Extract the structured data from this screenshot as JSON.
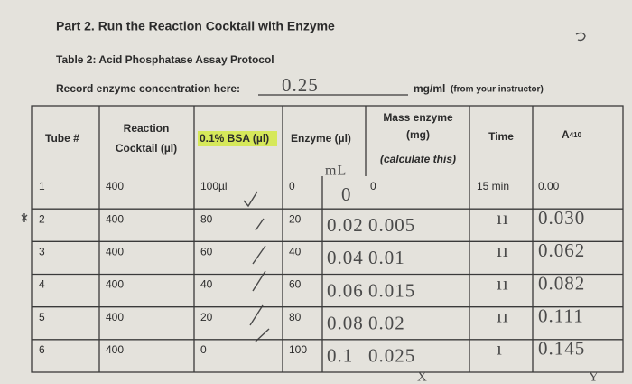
{
  "header": {
    "title": "Part 2. Run the Reaction Cocktail with Enzyme",
    "table_title": "Table 2: Acid Phosphatase Assay Protocol",
    "record_label": "Record enzyme concentration here:",
    "record_value": "0.25",
    "unit": "mg/ml",
    "unit_note": "(from your instructor)"
  },
  "table": {
    "columns": {
      "tube": "Tube #",
      "cocktail": [
        "Reaction",
        "Cocktail (µl)"
      ],
      "bsa": "0.1% BSA (µl)",
      "enzyme": "Enzyme (µl)",
      "mass": [
        "Mass enzyme",
        "(mg)"
      ],
      "mass_note": "(calculate this)",
      "time": "Time",
      "a410": {
        "letter": "A",
        "sub": "410"
      }
    },
    "ml_note": "mL",
    "rows": [
      {
        "tube": "1",
        "cocktail": "400",
        "bsa": "100µl",
        "enzyme": "0",
        "hand_volume": "0",
        "printed_mass": "0",
        "time": "15 min",
        "a410": "0.00"
      },
      {
        "tube": "2",
        "cocktail": "400",
        "bsa": "80",
        "enzyme": "20",
        "hand_volume": "0.02",
        "hand_mass": "0.005",
        "time": "ıı",
        "a410": "0.030"
      },
      {
        "tube": "3",
        "cocktail": "400",
        "bsa": "60",
        "enzyme": "40",
        "hand_volume": "0.04",
        "hand_mass": "0.01",
        "time": "ıı",
        "a410": "0.062"
      },
      {
        "tube": "4",
        "cocktail": "400",
        "bsa": "40",
        "enzyme": "60",
        "hand_volume": "0.06",
        "hand_mass": "0.015",
        "time": "ıı",
        "a410": "0.082"
      },
      {
        "tube": "5",
        "cocktail": "400",
        "bsa": "20",
        "enzyme": "80",
        "hand_volume": "0.08",
        "hand_mass": "0.02",
        "time": "ıı",
        "a410": "0.111"
      },
      {
        "tube": "6",
        "cocktail": "400",
        "bsa": "0",
        "enzyme": "100",
        "hand_volume": "0.1",
        "hand_mass": "0.025",
        "time": "ı",
        "a410": "0.145"
      }
    ],
    "x_label": "X",
    "y_label": "Y"
  }
}
